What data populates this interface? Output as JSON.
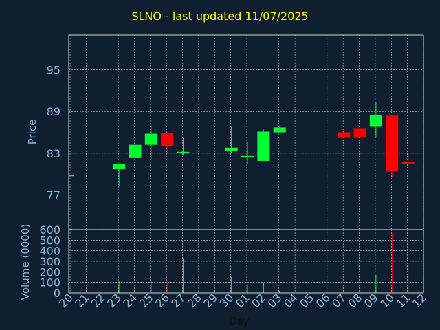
{
  "chart_data": {
    "type": "candlestick",
    "title": "SLNO - last updated 11/07/2025",
    "xlabel": "Day",
    "ylabel": "Price",
    "volume_label": "Volume (0000)",
    "x": [
      "20",
      "21",
      "22",
      "23",
      "24",
      "25",
      "26",
      "27",
      "28",
      "29",
      "30",
      "01",
      "02",
      "03",
      "04",
      "05",
      "06",
      "07",
      "08",
      "09",
      "10",
      "11",
      "12"
    ],
    "price_ylim": [
      72,
      100
    ],
    "price_ticks": [
      "95",
      "89",
      "83",
      "77"
    ],
    "price_tick_values": [
      95,
      89,
      83,
      77
    ],
    "volume_ylim": [
      0,
      600
    ],
    "volume_ticks": [
      "600",
      "500",
      "400",
      "300",
      "200",
      "100",
      "0"
    ],
    "volume_tick_values": [
      600,
      500,
      400,
      300,
      200,
      100,
      0
    ],
    "candles": [
      {
        "day": "20",
        "open": 79.9,
        "close": 79.9,
        "high": 79.9,
        "low": 79.9,
        "volume": 0
      },
      {
        "day": "23",
        "open": 80.7,
        "close": 81.4,
        "high": 81.5,
        "low": 78.3,
        "volume": 110
      },
      {
        "day": "24",
        "open": 82.3,
        "close": 84.2,
        "high": 85.4,
        "low": 80.5,
        "volume": 250
      },
      {
        "day": "25",
        "open": 84.2,
        "close": 85.8,
        "high": 87.0,
        "low": 82.2,
        "volume": 120
      },
      {
        "day": "26",
        "open": 85.9,
        "close": 84.0,
        "high": 86.0,
        "low": 82.9,
        "volume": 120
      },
      {
        "day": "27",
        "open": 83.0,
        "close": 83.2,
        "high": 85.2,
        "low": 82.8,
        "volume": 330
      },
      {
        "day": "30",
        "open": 83.3,
        "close": 83.8,
        "high": 86.8,
        "low": 83.0,
        "volume": 150
      },
      {
        "day": "01",
        "open": 82.6,
        "close": 82.6,
        "high": 84.6,
        "low": 81.4,
        "volume": 80
      },
      {
        "day": "02",
        "open": 81.9,
        "close": 86.1,
        "high": 86.4,
        "low": 81.9,
        "volume": 100
      },
      {
        "day": "03",
        "open": 86.0,
        "close": 86.7,
        "high": 86.8,
        "low": 86.0,
        "volume": 20
      },
      {
        "day": "07",
        "open": 86.0,
        "close": 85.2,
        "high": 86.1,
        "low": 83.8,
        "volume": 60
      },
      {
        "day": "08",
        "open": 86.6,
        "close": 85.3,
        "high": 86.7,
        "low": 84.5,
        "volume": 90
      },
      {
        "day": "09",
        "open": 86.8,
        "close": 88.5,
        "high": 90.3,
        "low": 85.2,
        "volume": 170
      },
      {
        "day": "10",
        "open": 88.4,
        "close": 80.4,
        "high": 88.4,
        "low": 79.6,
        "volume": 570
      },
      {
        "day": "11",
        "open": 81.7,
        "close": 81.4,
        "high": 83.0,
        "low": 80.8,
        "volume": 260
      }
    ],
    "colors": {
      "up": "#00ff33",
      "down": "#ff0000",
      "grid": "#ffffff",
      "axis": "#8fb3d1",
      "title": "#ffff00",
      "background": "#0f1f30"
    },
    "grid": true
  }
}
